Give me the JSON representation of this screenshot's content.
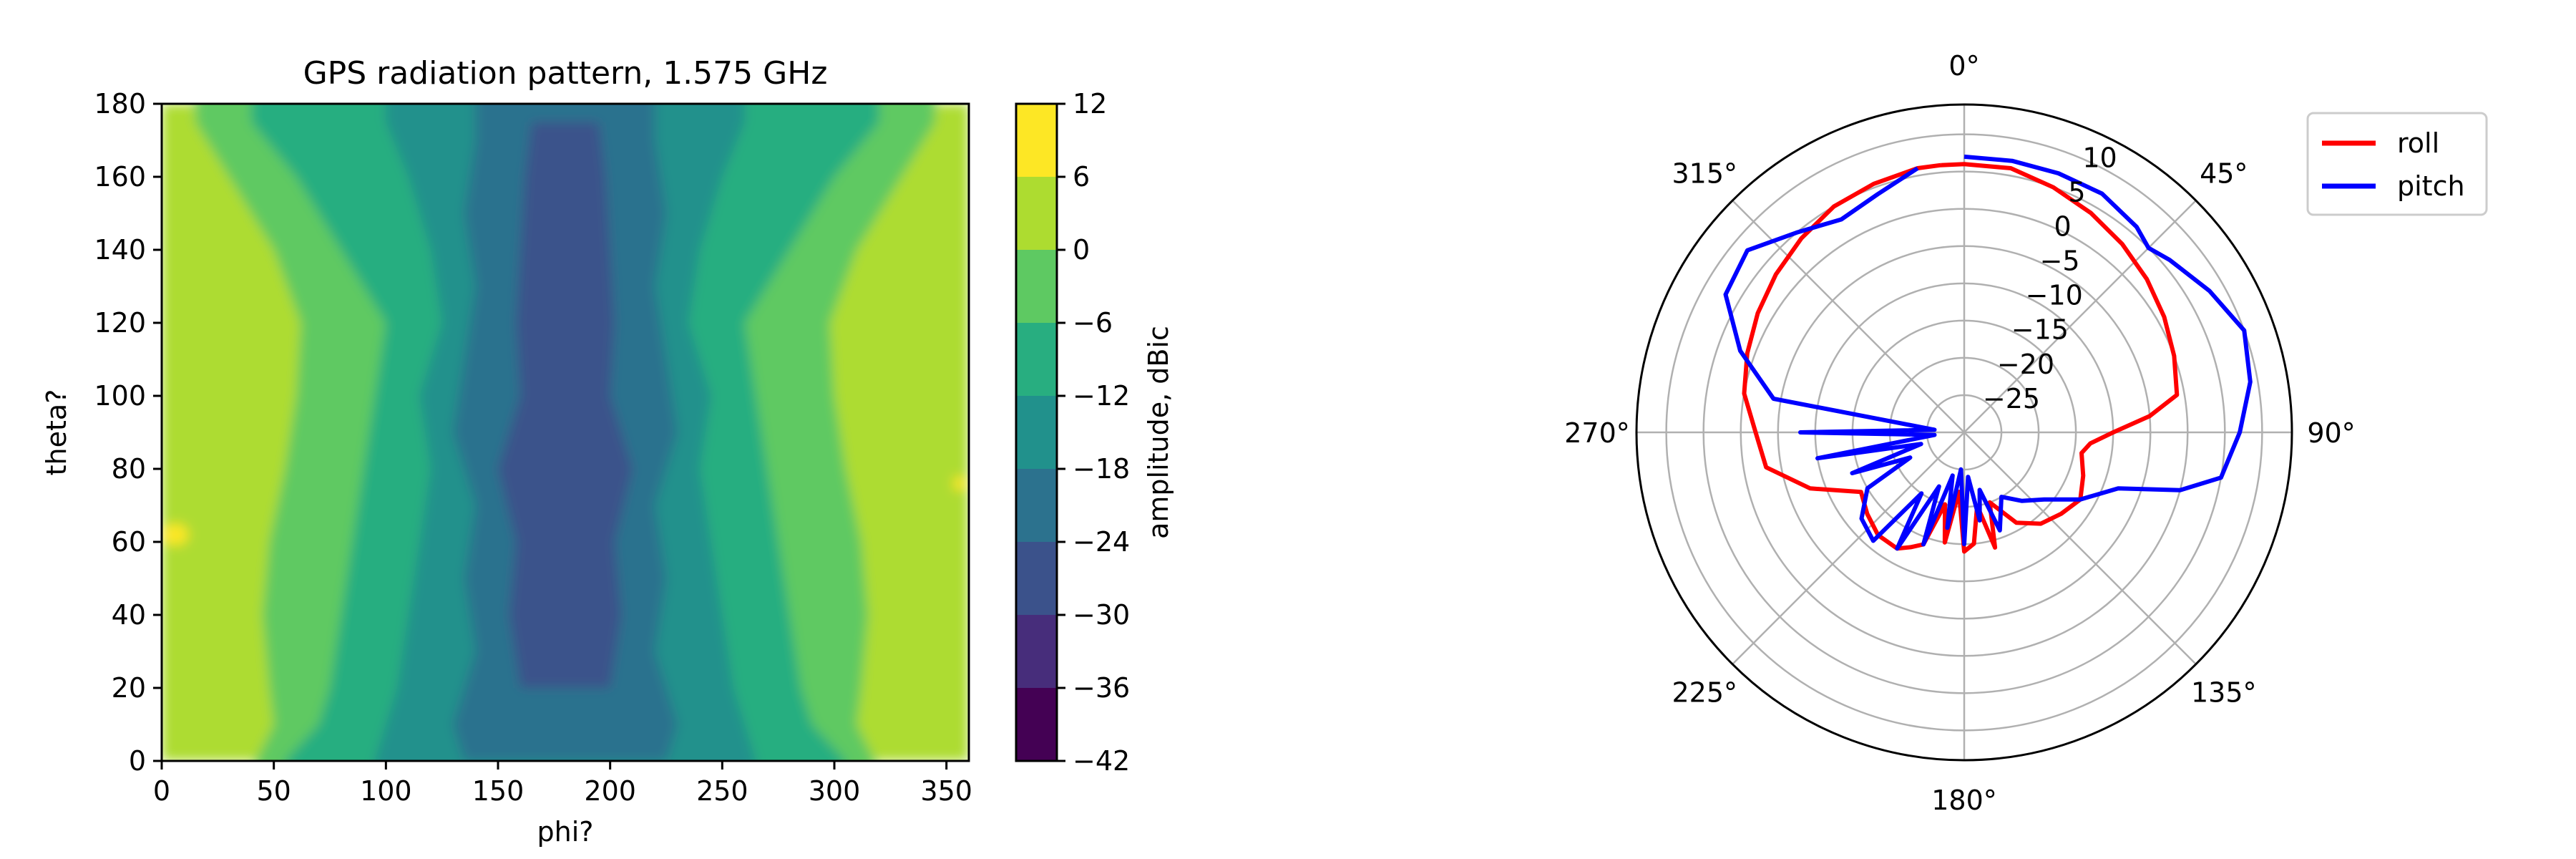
{
  "chart_data": [
    {
      "type": "heatmap",
      "title": "GPS radiation pattern, 1.575 GHz",
      "xlabel": "phi?",
      "ylabel": "theta?",
      "xlim": [
        0,
        360
      ],
      "ylim": [
        0,
        180
      ],
      "xticks": [
        0,
        50,
        100,
        150,
        200,
        250,
        300,
        350
      ],
      "yticks": [
        0,
        20,
        40,
        60,
        80,
        100,
        120,
        140,
        160,
        180
      ],
      "colormap": "viridis",
      "colorbar": {
        "label": "amplitude, dBic",
        "levels": [
          -42,
          -36,
          -30,
          -24,
          -18,
          -12,
          -6,
          0,
          6,
          12
        ],
        "colors": [
          "#440154",
          "#472d7b",
          "#3b528b",
          "#2c728e",
          "#21918c",
          "#28ae80",
          "#5ec962",
          "#addc30",
          "#fde725"
        ]
      },
      "description_of_field": "Roughly symmetric pattern about phi=180: high gain (0 to 6 dBic) near phi 0-45 and 315-360, low gain (-24 to -30 dBic) near phi 120-230, small peak (>6 dBic) near phi 5, theta 62"
    },
    {
      "type": "polar-line",
      "theta_direction": "clockwise",
      "theta_zero": "top",
      "angle_ticks": [
        "0°",
        "45°",
        "90°",
        "135°",
        "180°",
        "225°",
        "270°",
        "315°"
      ],
      "radial_ticks": [
        -25,
        -20,
        -15,
        -10,
        -5,
        0,
        5,
        10
      ],
      "rlim": [
        -30,
        14
      ],
      "grid": true,
      "legend": "top-right",
      "series": [
        {
          "name": "roll",
          "color": "#ff0000",
          "angles": [
            -5,
            0,
            10,
            20,
            30,
            40,
            50,
            60,
            70,
            80,
            85,
            90,
            95,
            100,
            110,
            120,
            130,
            140,
            150,
            160,
            165,
            170,
            175,
            180,
            185,
            190,
            195,
            200,
            205,
            210,
            220,
            230,
            240,
            250,
            260,
            270,
            280,
            290,
            300,
            310,
            320,
            330,
            340,
            350,
            355
          ],
          "values": [
            6,
            6,
            6,
            5,
            4,
            3,
            2,
            1,
            0,
            -1,
            -5,
            -10,
            -13,
            -14,
            -13,
            -12,
            -13,
            -14,
            -16,
            -20,
            -14,
            -20,
            -15,
            -14,
            -22,
            -15,
            -20,
            -14,
            -13,
            -12,
            -12,
            -13,
            -14,
            -8,
            -3,
            -2,
            0,
            1,
            2,
            3,
            4,
            5,
            5.5,
            6,
            6
          ]
        },
        {
          "name": "pitch",
          "color": "#0000ff",
          "angles": [
            0,
            10,
            20,
            30,
            40,
            45,
            50,
            60,
            70,
            80,
            90,
            100,
            105,
            110,
            120,
            130,
            140,
            150,
            160,
            165,
            170,
            175,
            180,
            185,
            190,
            195,
            200,
            205,
            210,
            215,
            220,
            230,
            240,
            245,
            250,
            255,
            260,
            265,
            270,
            275,
            280,
            290,
            300,
            310,
            320,
            330,
            340,
            350
          ],
          "values": [
            7,
            7,
            7,
            7,
            6,
            5,
            6,
            8,
            10,
            9,
            7,
            5,
            0,
            -8,
            -12,
            -16,
            -18,
            -20,
            -16,
            -22,
            -18,
            -24,
            -15,
            -25,
            -17,
            -24,
            -14,
            -22,
            -12,
            -20,
            -11,
            -12,
            -15,
            -22,
            -14,
            -24,
            -10,
            -26,
            -8,
            -26,
            -4,
            2,
            7,
            8,
            5,
            3,
            4,
            6
          ]
        }
      ]
    }
  ]
}
